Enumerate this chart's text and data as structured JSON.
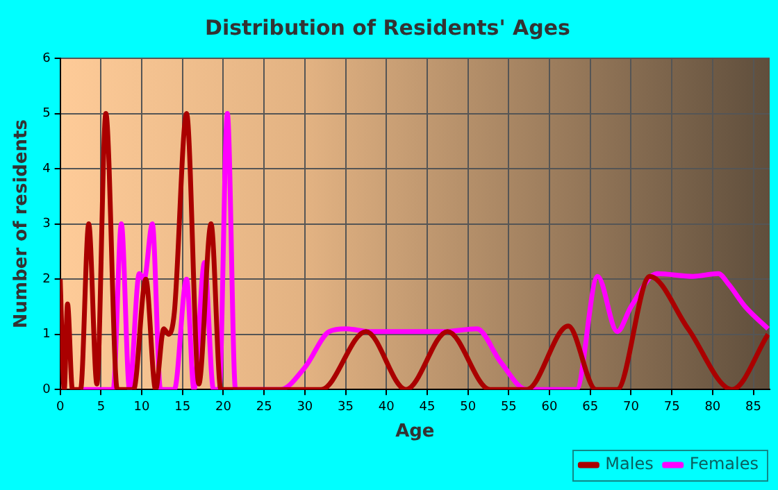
{
  "chart_data": {
    "type": "line",
    "title": "Distribution of Residents' Ages",
    "xlabel": "Age",
    "ylabel": "Number of residents",
    "xlim": [
      0,
      87
    ],
    "xticks": [
      0,
      5,
      10,
      15,
      20,
      25,
      30,
      35,
      40,
      45,
      50,
      55,
      60,
      65,
      70,
      75,
      80,
      85
    ],
    "ylim": [
      0,
      6
    ],
    "yticks": [
      0,
      1,
      2,
      3,
      4,
      5,
      6
    ],
    "grid": true,
    "legend": "bottom right",
    "marker": "none",
    "line_style": "solid",
    "series": [
      {
        "name": "Males",
        "color": "#aa0000",
        "x": [
          0,
          0.5,
          0.9,
          1.5,
          2.5,
          3.5,
          4.5,
          5.6,
          7,
          9,
          10.5,
          11.7,
          12.7,
          13.3,
          14,
          15.5,
          17,
          18.5,
          19.7,
          25,
          32,
          37.5,
          42.4,
          47.5,
          52.7,
          57.2,
          62.3,
          65.7,
          68.3,
          72.3,
          77,
          82.4,
          86.8
        ],
        "values": [
          2,
          0,
          1.55,
          0,
          0,
          3,
          0.1,
          5,
          0,
          0,
          2,
          0,
          1.1,
          1,
          1.4,
          5,
          0.1,
          3,
          0,
          0,
          0,
          1.05,
          0,
          1.05,
          0,
          0,
          1.15,
          0,
          0,
          2.05,
          1.1,
          0,
          1
        ]
      },
      {
        "name": "Females",
        "color": "#ff00ff",
        "x": [
          2.5,
          6,
          6.5,
          7.5,
          8.5,
          9.7,
          10.3,
          11.3,
          12.3,
          14,
          15.5,
          16.4,
          17.7,
          18.8,
          19.5,
          20.5,
          21.5,
          27,
          30,
          33,
          35,
          38,
          47,
          51.1,
          54,
          57.2,
          63.3,
          65.9,
          68.3,
          70,
          73.2,
          77.6,
          80.7,
          82,
          84,
          86.8
        ],
        "values": [
          0,
          0,
          0,
          3,
          0,
          2.1,
          2,
          3,
          0,
          0,
          2,
          0,
          2.3,
          0,
          0,
          5,
          0,
          0,
          0.4,
          1.05,
          1.1,
          1.05,
          1.05,
          1.1,
          0.5,
          0,
          0,
          2.05,
          1.05,
          1.5,
          2.1,
          2.05,
          2.1,
          1.9,
          1.5,
          1.1
        ]
      }
    ]
  }
}
